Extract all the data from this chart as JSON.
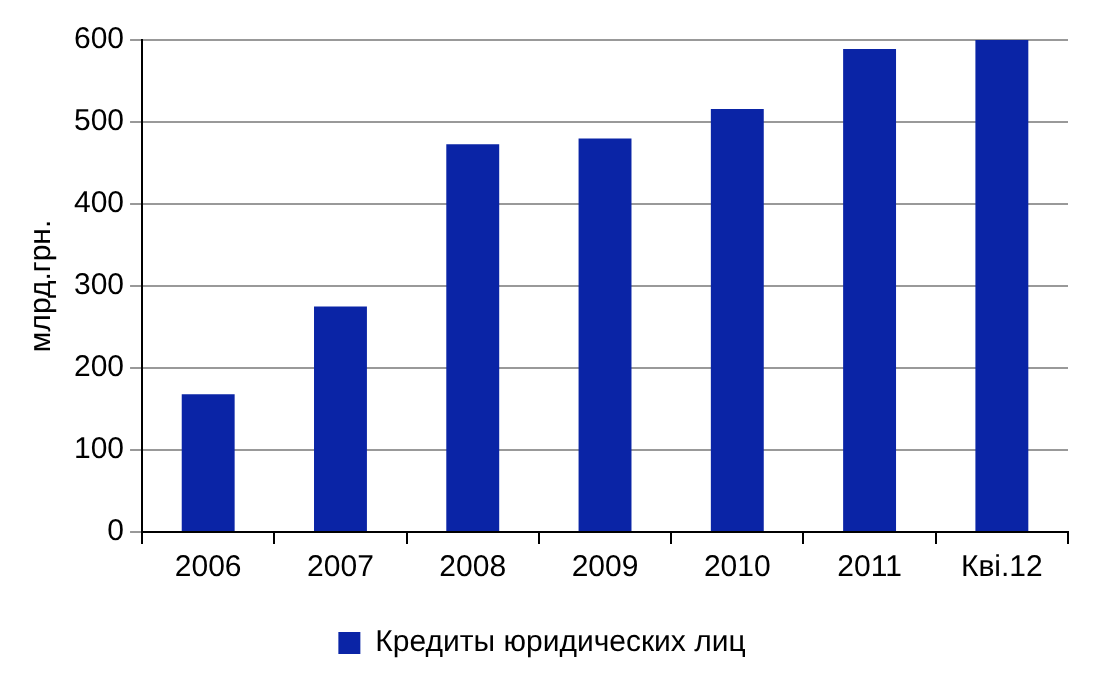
{
  "chart_data": {
    "type": "bar",
    "ylabel": "млрд.грн.",
    "categories": [
      "2006",
      "2007",
      "2008",
      "2009",
      "2010",
      "2011",
      "Кві.12"
    ],
    "series": [
      {
        "name": "Кредиты юридических лиц",
        "color": "#0a24a6",
        "values": [
          168,
          275,
          473,
          480,
          516,
          589,
          600
        ]
      }
    ],
    "ylim": [
      0,
      600
    ],
    "yticks": [
      0,
      100,
      200,
      300,
      400,
      500,
      600
    ],
    "grid": "y",
    "legend": "bottom"
  }
}
